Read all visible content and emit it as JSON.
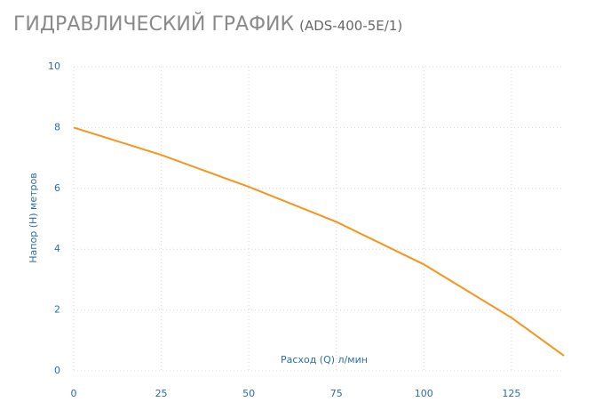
{
  "chart_data": {
    "type": "line",
    "title": "ГИДРАВЛИЧЕСКИЙ ГРАФИК",
    "subtitle": "(ADS-400-5E/1)",
    "x_label": "Расход (Q) л/мин",
    "y_label": "Напор (H) метров",
    "x": [
      0,
      25,
      50,
      75,
      100,
      125,
      140
    ],
    "series": [
      {
        "name": "ADS-400-5E/1",
        "color": "#f7941d",
        "values": [
          8,
          7.1,
          6.05,
          4.9,
          3.5,
          1.75,
          0.5
        ]
      }
    ],
    "xlim": [
      0,
      140
    ],
    "ylim": [
      0,
      10
    ],
    "xticks": [
      0,
      25,
      50,
      75,
      100,
      125
    ],
    "yticks": [
      0,
      2,
      4,
      6,
      8,
      10
    ],
    "grid": true
  }
}
